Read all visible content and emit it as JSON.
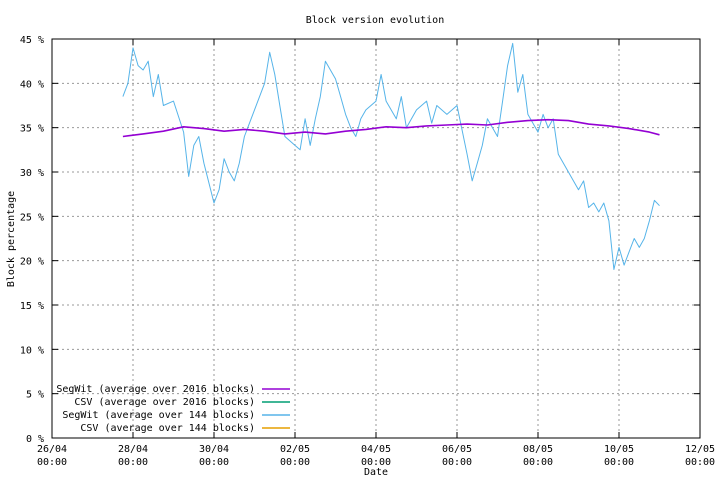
{
  "chart_data": {
    "type": "line",
    "title": "Block version evolution",
    "xlabel": "Date",
    "ylabel": "Block percentage",
    "ylim": [
      0,
      45
    ],
    "x_unit": "date (2016)",
    "xlim": [
      "26/04 00:00",
      "12/05 00:00"
    ],
    "y_ticks": [
      "0 %",
      "5 %",
      "10 %",
      "15 %",
      "20 %",
      "25 %",
      "30 %",
      "35 %",
      "40 %",
      "45 %"
    ],
    "x_ticks": [
      {
        "date": "26/04",
        "time": "00:00"
      },
      {
        "date": "28/04",
        "time": "00:00"
      },
      {
        "date": "30/04",
        "time": "00:00"
      },
      {
        "date": "02/05",
        "time": "00:00"
      },
      {
        "date": "04/05",
        "time": "00:00"
      },
      {
        "date": "06/05",
        "time": "00:00"
      },
      {
        "date": "08/05",
        "time": "00:00"
      },
      {
        "date": "10/05",
        "time": "00:00"
      },
      {
        "date": "12/05",
        "time": "00:00"
      }
    ],
    "grid": true,
    "legend_position": "bottom-left",
    "series": [
      {
        "name": "SegWit (average over 2016 blocks)",
        "color": "#9400d3",
        "points": [
          [
            "27/04 18:00",
            34.0
          ],
          [
            "28/04 06:00",
            34.3
          ],
          [
            "28/04 18:00",
            34.6
          ],
          [
            "29/04 06:00",
            35.1
          ],
          [
            "29/04 18:00",
            34.9
          ],
          [
            "30/04 06:00",
            34.6
          ],
          [
            "30/04 18:00",
            34.8
          ],
          [
            "01/05 06:00",
            34.6
          ],
          [
            "01/05 18:00",
            34.3
          ],
          [
            "02/05 06:00",
            34.5
          ],
          [
            "02/05 18:00",
            34.3
          ],
          [
            "03/05 06:00",
            34.6
          ],
          [
            "03/05 18:00",
            34.8
          ],
          [
            "04/05 06:00",
            35.1
          ],
          [
            "04/05 18:00",
            35.0
          ],
          [
            "05/05 06:00",
            35.2
          ],
          [
            "05/05 18:00",
            35.3
          ],
          [
            "06/05 06:00",
            35.4
          ],
          [
            "06/05 18:00",
            35.3
          ],
          [
            "07/05 06:00",
            35.6
          ],
          [
            "07/05 18:00",
            35.8
          ],
          [
            "08/05 06:00",
            35.9
          ],
          [
            "08/05 18:00",
            35.8
          ],
          [
            "09/05 06:00",
            35.4
          ],
          [
            "09/05 18:00",
            35.2
          ],
          [
            "10/05 06:00",
            34.9
          ],
          [
            "10/05 18:00",
            34.5
          ],
          [
            "11/05 00:00",
            34.2
          ]
        ]
      },
      {
        "name": "CSV (average over 2016 blocks)",
        "color": "#009e73",
        "points": []
      },
      {
        "name": "SegWit (average over 144 blocks)",
        "color": "#56b4e9",
        "points": [
          [
            "27/04 18:00",
            38.5
          ],
          [
            "27/04 21:00",
            40.0
          ],
          [
            "28/04 00:00",
            44.0
          ],
          [
            "28/04 03:00",
            42.0
          ],
          [
            "28/04 06:00",
            41.5
          ],
          [
            "28/04 09:00",
            42.5
          ],
          [
            "28/04 12:00",
            38.5
          ],
          [
            "28/04 15:00",
            41.0
          ],
          [
            "28/04 18:00",
            37.5
          ],
          [
            "29/04 00:00",
            38.0
          ],
          [
            "29/04 06:00",
            34.5
          ],
          [
            "29/04 09:00",
            29.5
          ],
          [
            "29/04 12:00",
            33.0
          ],
          [
            "29/04 15:00",
            34.0
          ],
          [
            "29/04 18:00",
            31.0
          ],
          [
            "30/04 00:00",
            26.5
          ],
          [
            "30/04 03:00",
            28.0
          ],
          [
            "30/04 06:00",
            31.5
          ],
          [
            "30/04 09:00",
            30.0
          ],
          [
            "30/04 12:00",
            29.0
          ],
          [
            "30/04 15:00",
            31.0
          ],
          [
            "30/04 18:00",
            34.0
          ],
          [
            "01/05 00:00",
            37.0
          ],
          [
            "01/05 06:00",
            40.0
          ],
          [
            "01/05 09:00",
            43.5
          ],
          [
            "01/05 12:00",
            41.0
          ],
          [
            "01/05 15:00",
            37.5
          ],
          [
            "01/05 18:00",
            34.0
          ],
          [
            "02/05 00:00",
            33.0
          ],
          [
            "02/05 03:00",
            32.5
          ],
          [
            "02/05 06:00",
            36.0
          ],
          [
            "02/05 09:00",
            33.0
          ],
          [
            "02/05 12:00",
            36.0
          ],
          [
            "02/05 15:00",
            38.5
          ],
          [
            "02/05 18:00",
            42.5
          ],
          [
            "03/05 00:00",
            40.5
          ],
          [
            "03/05 03:00",
            38.5
          ],
          [
            "03/05 06:00",
            36.5
          ],
          [
            "03/05 09:00",
            35.0
          ],
          [
            "03/05 12:00",
            34.0
          ],
          [
            "03/05 15:00",
            36.0
          ],
          [
            "03/05 18:00",
            37.0
          ],
          [
            "04/05 00:00",
            38.0
          ],
          [
            "04/05 03:00",
            41.0
          ],
          [
            "04/05 06:00",
            38.0
          ],
          [
            "04/05 12:00",
            36.0
          ],
          [
            "04/05 15:00",
            38.5
          ],
          [
            "04/05 18:00",
            35.0
          ],
          [
            "05/05 00:00",
            37.0
          ],
          [
            "05/05 06:00",
            38.0
          ],
          [
            "05/05 09:00",
            35.5
          ],
          [
            "05/05 12:00",
            37.5
          ],
          [
            "05/05 18:00",
            36.5
          ],
          [
            "06/05 00:00",
            37.5
          ],
          [
            "06/05 06:00",
            32.0
          ],
          [
            "06/05 09:00",
            29.0
          ],
          [
            "06/05 12:00",
            31.0
          ],
          [
            "06/05 15:00",
            33.0
          ],
          [
            "06/05 18:00",
            36.0
          ],
          [
            "07/05 00:00",
            34.0
          ],
          [
            "07/05 03:00",
            38.0
          ],
          [
            "07/05 06:00",
            42.0
          ],
          [
            "07/05 09:00",
            44.5
          ],
          [
            "07/05 12:00",
            39.0
          ],
          [
            "07/05 15:00",
            41.0
          ],
          [
            "07/05 18:00",
            36.5
          ],
          [
            "08/05 00:00",
            34.5
          ],
          [
            "08/05 03:00",
            36.5
          ],
          [
            "08/05 06:00",
            35.0
          ],
          [
            "08/05 09:00",
            36.0
          ],
          [
            "08/05 12:00",
            32.0
          ],
          [
            "08/05 18:00",
            30.0
          ],
          [
            "09/05 00:00",
            28.0
          ],
          [
            "09/05 03:00",
            29.0
          ],
          [
            "09/05 06:00",
            26.0
          ],
          [
            "09/05 09:00",
            26.5
          ],
          [
            "09/05 12:00",
            25.5
          ],
          [
            "09/05 15:00",
            26.5
          ],
          [
            "09/05 18:00",
            24.5
          ],
          [
            "09/05 21:00",
            19.0
          ],
          [
            "10/05 00:00",
            21.5
          ],
          [
            "10/05 03:00",
            19.5
          ],
          [
            "10/05 06:00",
            21.0
          ],
          [
            "10/05 09:00",
            22.5
          ],
          [
            "10/05 12:00",
            21.5
          ],
          [
            "10/05 15:00",
            22.5
          ],
          [
            "10/05 18:00",
            24.5
          ],
          [
            "10/05 21:00",
            26.8
          ],
          [
            "11/05 00:00",
            26.2
          ]
        ]
      },
      {
        "name": "CSV (average over 144 blocks)",
        "color": "#e69f00",
        "points": []
      }
    ]
  }
}
